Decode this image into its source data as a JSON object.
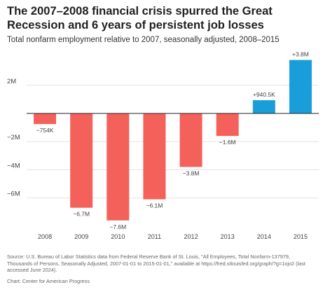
{
  "title": "The 2007–2008 financial crisis spurred the Great Recession and 6 years of persistent job losses",
  "subtitle": "Total nonfarm employment relative to 2007, seasonally adjusted, 2008–2015",
  "source": "Source: U.S. Bureau of Labor Statistics data from Federal Reserve Bank of St. Louis, \"All Employees, Total Nonfarm-137979, Thousands of Persons, Seasonally Adjusted, 2007-01-01 to 2015-01-01,\" available at https://fred.stlouisfed.org/graph/?g=1ojo2 (last accessed June 2024).",
  "credit": "Chart: Center for American Progress",
  "colors": {
    "negative": "#f4605a",
    "positive": "#1a9ed9",
    "zero_line": "#222222",
    "grid": "#e3e3e3"
  },
  "chart_data": {
    "type": "bar",
    "categories": [
      "2008",
      "2009",
      "2010",
      "2011",
      "2012",
      "2013",
      "2014",
      "2015"
    ],
    "values": [
      -0.754,
      -6.7,
      -7.6,
      -6.1,
      -3.8,
      -1.6,
      0.9405,
      3.8
    ],
    "data_labels": [
      "−754K",
      "−6.7M",
      "−7.6M",
      "−6.1M",
      "−3.8M",
      "−1.6M",
      "+940.5K",
      "+3.8M"
    ],
    "y_ticks": [
      2,
      -2,
      -4,
      -6
    ],
    "y_tick_labels": [
      "2M",
      "−2M",
      "−4M",
      "−6M"
    ],
    "ylim": [
      -8,
      4
    ],
    "grid": true,
    "legend": "none",
    "title": "The 2007–2008 financial crisis spurred the Great Recession and 6 years of persistent job losses",
    "xlabel": "",
    "ylabel": ""
  }
}
